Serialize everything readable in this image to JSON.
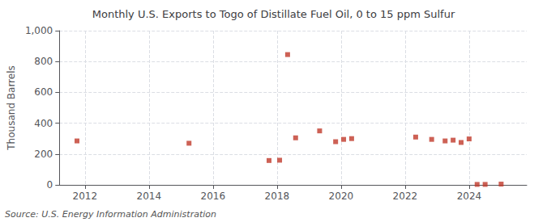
{
  "chart_data": {
    "type": "scatter",
    "title": "Monthly U.S. Exports to Togo of Distillate Fuel Oil, 0 to 15 ppm Sulfur",
    "ylabel": "Thousand Barrels",
    "source": "Source: U.S. Energy Information Administration",
    "color": "#c0392b",
    "marker": "square",
    "grid": true,
    "x": [
      2011.75,
      2015.25,
      2017.75,
      2018.08,
      2018.33,
      2018.58,
      2019.33,
      2019.83,
      2020.08,
      2020.33,
      2022.33,
      2022.83,
      2023.25,
      2023.5,
      2023.75,
      2024.0,
      2024.25,
      2024.5,
      2025.0
    ],
    "values": [
      285,
      270,
      158,
      160,
      845,
      305,
      350,
      280,
      295,
      300,
      310,
      295,
      285,
      290,
      275,
      298,
      3,
      3,
      5
    ],
    "xlim": [
      2011.2,
      2025.8
    ],
    "xticks": [
      2012,
      2014,
      2016,
      2018,
      2020,
      2022,
      2024
    ],
    "ylim": [
      0,
      1000
    ],
    "yticks": [
      0,
      200,
      400,
      600,
      800,
      {
        "value": 1000,
        "label": "1,000"
      }
    ]
  }
}
